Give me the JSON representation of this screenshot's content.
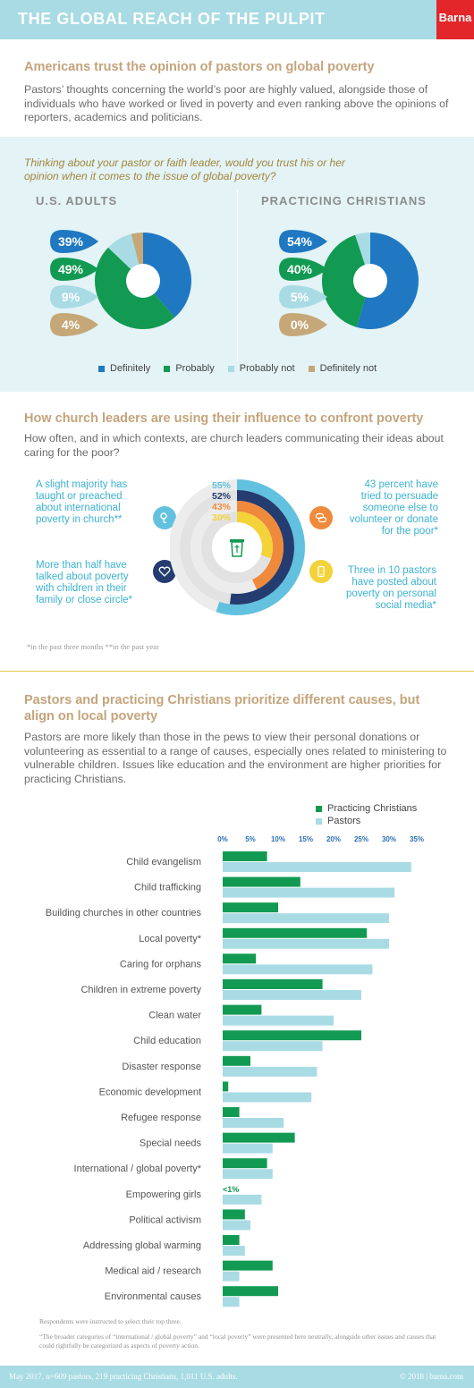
{
  "header": {
    "title": "THE GLOBAL REACH OF THE PULPIT",
    "logo": "Barna"
  },
  "section1": {
    "title": "Americans trust the opinion of pastors on global poverty",
    "text": "Pastors’ thoughts concerning the world’s poor are highly valued, alongside those of individuals who have worked or lived in poverty and even ranking above the opinions of reporters, academics and politicians.",
    "question": "Thinking about your pastor or faith leader, would you trust his or her opinion when it comes to the issue of global poverty?"
  },
  "colors": {
    "definitely": "#1f78c1",
    "probably": "#129a52",
    "probably_not": "#a9dbe5",
    "definitely_not": "#c5a778",
    "practicing": "#129a52",
    "pastors": "#a9dbe5",
    "r55": "#62c1de",
    "r52": "#243c70",
    "r43": "#ef8a3c",
    "r30": "#f4d23a"
  },
  "section2": {
    "title": "How church leaders are using their influence to confront poverty",
    "text": "How often, and in which contexts, are church leaders communicating their ideas about caring for the poor?",
    "callouts": [
      "A slight majority has taught or preached about international poverty in church**",
      "More than half have talked about poverty with children in their family or close circle*",
      "43 percent have tried to persuade someone else to volunteer or donate for the poor*",
      "Three in 10 pastors have posted about poverty on personal social media*"
    ],
    "footnote": "*in the past three months  **in the past year",
    "icons": [
      "microphone-icon",
      "heart-icon",
      "speech-bubble-icon",
      "phone-icon",
      "pulpit-icon"
    ]
  },
  "section3": {
    "title": "Pastors and practicing Christians prioritize different causes, but align on local poverty",
    "text": "Pastors are more likely than those in the pews to view their personal donations or volunteering as essential to a range of causes, especially ones related to ministering to vulnerable children. Issues like education and the environment are higher priorities for practicing Christians."
  },
  "footer": {
    "notes": [
      "Respondents were instructed to select their top three.",
      "“The broader categories of “international / global poverty” and “local poverty” were presented here neutrally, alongside other issues and causes that could rightfully be categorized as aspects of poverty action."
    ],
    "left": "May 2017, n=609 pastors, 219 practicing Christians, 1,011 U.S. adults.",
    "right": "© 2018 | barna.com"
  },
  "chart_data": [
    {
      "type": "pie",
      "title": "U.S. ADULTS",
      "categories": [
        "Definitely",
        "Probably",
        "Probably not",
        "Definitely not"
      ],
      "values": [
        39,
        49,
        9,
        4
      ],
      "labels": [
        "39%",
        "49%",
        "9%",
        "4%"
      ],
      "legend": "bottom"
    },
    {
      "type": "pie",
      "title": "PRACTICING CHRISTIANS",
      "categories": [
        "Definitely",
        "Probably",
        "Probably not",
        "Definitely not"
      ],
      "values": [
        54,
        40,
        5,
        0
      ],
      "labels": [
        "54%",
        "40%",
        "5%",
        "0%"
      ],
      "legend": "bottom"
    },
    {
      "type": "bar",
      "categories": [
        "Taught or preached about international poverty in church",
        "Talked about poverty with children in family or close circle",
        "Tried to persuade someone else to volunteer or donate for the poor",
        "Posted about poverty on personal social media"
      ],
      "values": [
        55,
        52,
        43,
        30
      ],
      "labels": [
        "55%",
        "52%",
        "43%",
        "30%"
      ]
    },
    {
      "type": "bar",
      "orientation": "horizontal",
      "categories": [
        "Child evangelism",
        "Child trafficking",
        "Building churches in other countries",
        "Local poverty*",
        "Caring for orphans",
        "Children in extreme poverty",
        "Clean water",
        "Child education",
        "Disaster response",
        "Economic development",
        "Refugee response",
        "Special needs",
        "International / global poverty*",
        "Empowering girls",
        "Political activism",
        "Addressing global warming",
        "Medical aid / research",
        "Environmental causes"
      ],
      "series": [
        {
          "name": "Practicing Christians",
          "values": [
            8,
            14,
            10,
            26,
            6,
            18,
            7,
            25,
            5,
            1,
            3,
            13,
            8,
            0.5,
            4,
            3,
            9,
            10
          ]
        },
        {
          "name": "Pastors",
          "values": [
            34,
            31,
            30,
            30,
            27,
            25,
            20,
            18,
            17,
            16,
            11,
            9,
            9,
            7,
            5,
            4,
            3,
            3
          ]
        }
      ],
      "ticks": [
        "0%",
        "5%",
        "10%",
        "15%",
        "20%",
        "25%",
        "30%",
        "35%"
      ],
      "annotation": "<1%",
      "xlim": [
        0,
        35
      ],
      "legend": "top-right"
    }
  ]
}
